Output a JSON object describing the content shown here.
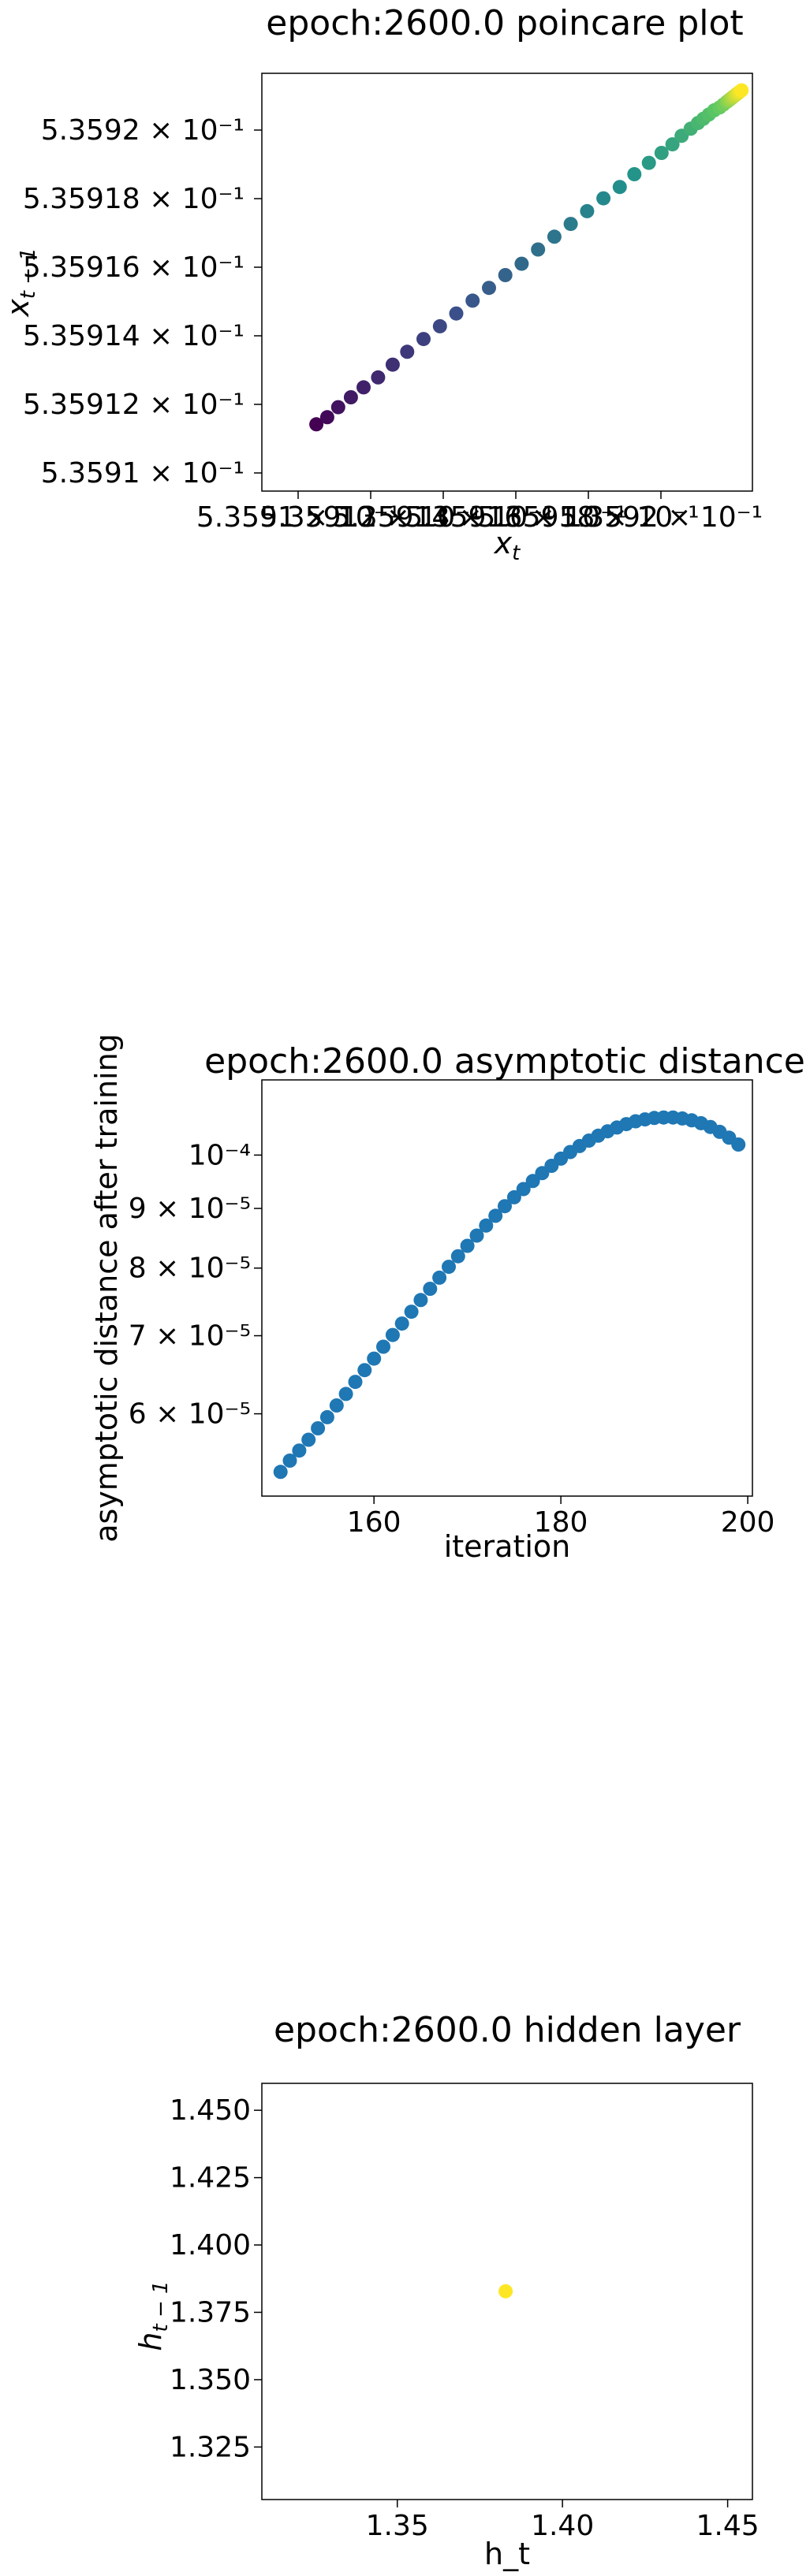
{
  "colors": {
    "viridis_start": "#440154",
    "viridis_mid": "#21918c",
    "viridis_end": "#fde725",
    "tab_blue": "#1f77b4"
  },
  "chart_data": [
    {
      "type": "scatter",
      "title": "epoch:2600.0 poincare plot",
      "xlabel": "x_t",
      "ylabel": "x_{t-1}",
      "xscale": "log",
      "yscale": "log",
      "grid": false,
      "colormap": "viridis",
      "x_tick_labels": [
        "5.3591 × 10⁻¹",
        "5.35912 × 10⁻¹",
        "5.35914 × 10⁻¹",
        "5.35916 × 10⁻¹",
        "5.35918 × 10⁻¹",
        "5.3592 × 10⁻¹"
      ],
      "y_tick_labels": [
        "5.3592 × 10⁻¹",
        "5.35918 × 10⁻¹",
        "5.35916 × 10⁻¹",
        "5.35914 × 10⁻¹",
        "5.35912 × 10⁻¹",
        "5.3591 × 10⁻¹"
      ],
      "xlim": [
        0.535908,
        0.5359215
      ],
      "ylim": [
        0.5359075,
        0.5359222
      ],
      "points": [
        [
          0.5359095,
          0.53590985
        ],
        [
          0.5359098,
          0.5359101
        ],
        [
          0.5359101,
          0.53591045
        ],
        [
          0.53591045,
          0.5359108
        ],
        [
          0.5359108,
          0.53591115
        ],
        [
          0.5359112,
          0.5359115
        ],
        [
          0.5359116,
          0.53591195
        ],
        [
          0.535912,
          0.5359124
        ],
        [
          0.53591245,
          0.53591285
        ],
        [
          0.5359129,
          0.5359133
        ],
        [
          0.53591335,
          0.53591375
        ],
        [
          0.5359138,
          0.5359142
        ],
        [
          0.53591425,
          0.53591465
        ],
        [
          0.5359147,
          0.5359151
        ],
        [
          0.53591515,
          0.5359155
        ],
        [
          0.5359156,
          0.535916
        ],
        [
          0.53591605,
          0.53591645
        ],
        [
          0.5359165,
          0.5359169
        ],
        [
          0.53591695,
          0.53591735
        ],
        [
          0.5359174,
          0.5359178
        ],
        [
          0.53591785,
          0.5359182
        ],
        [
          0.53591825,
          0.53591865
        ],
        [
          0.53591865,
          0.53591905
        ],
        [
          0.535919,
          0.5359194
        ],
        [
          0.5359193,
          0.5359197
        ],
        [
          0.53591955,
          0.53592
        ],
        [
          0.5359198,
          0.53592025
        ],
        [
          0.53592,
          0.53592045
        ],
        [
          0.53592015,
          0.5359206
        ],
        [
          0.5359203,
          0.53592075
        ],
        [
          0.53592045,
          0.5359209
        ],
        [
          0.5359206,
          0.535921
        ],
        [
          0.5359207,
          0.5359211
        ],
        [
          0.5359208,
          0.5359212
        ],
        [
          0.53592085,
          0.53592125
        ],
        [
          0.5359209,
          0.5359213
        ],
        [
          0.53592095,
          0.53592135
        ],
        [
          0.535921,
          0.5359214
        ],
        [
          0.53592105,
          0.53592145
        ],
        [
          0.5359211,
          0.5359215
        ],
        [
          0.53592115,
          0.53592155
        ],
        [
          0.5359212,
          0.5359216
        ]
      ]
    },
    {
      "type": "scatter",
      "title": "epoch:2600.0 asymptotic distance",
      "xlabel": "iteration",
      "ylabel": "asymptotic distance after training",
      "yscale": "log",
      "grid": false,
      "xlim": [
        148,
        200.5
      ],
      "ylim": [
        5.1e-05,
        0.000116
      ],
      "x_ticks": [
        160,
        180,
        200
      ],
      "y_ticks": [
        {
          "label": "6 × 10⁻⁵",
          "value": 6e-05
        },
        {
          "label": "7 × 10⁻⁵",
          "value": 7e-05
        },
        {
          "label": "8 × 10⁻⁵",
          "value": 8e-05
        },
        {
          "label": "9 × 10⁻⁵",
          "value": 9e-05
        },
        {
          "label": "10⁻⁴",
          "value": 0.0001
        }
      ],
      "x": [
        150,
        151,
        152,
        153,
        154,
        155,
        156,
        157,
        158,
        159,
        160,
        161,
        162,
        163,
        164,
        165,
        166,
        167,
        168,
        169,
        170,
        171,
        172,
        173,
        174,
        175,
        176,
        177,
        178,
        179,
        180,
        181,
        182,
        183,
        184,
        185,
        186,
        187,
        188,
        189,
        190,
        191,
        192,
        193,
        194,
        195,
        196,
        197,
        198,
        199
      ],
      "y": [
        5.35e-05,
        5.47e-05,
        5.58e-05,
        5.7e-05,
        5.83e-05,
        5.96e-05,
        6.1e-05,
        6.24e-05,
        6.39e-05,
        6.54e-05,
        6.69e-05,
        6.85e-05,
        7.01e-05,
        7.17e-05,
        7.34e-05,
        7.51e-05,
        7.68e-05,
        7.85e-05,
        8.02e-05,
        8.19e-05,
        8.36e-05,
        8.53e-05,
        8.7e-05,
        8.87e-05,
        9.04e-05,
        9.2e-05,
        9.35e-05,
        9.5e-05,
        9.65e-05,
        9.79e-05,
        9.93e-05,
        0.0001006,
        0.0001018,
        0.0001029,
        0.0001039,
        0.0001048,
        0.0001056,
        0.0001063,
        0.0001069,
        0.0001073,
        0.0001076,
        0.0001077,
        0.0001077,
        0.0001075,
        0.0001071,
        0.0001065,
        0.0001057,
        0.0001047,
        0.0001035,
        0.0001021
      ]
    },
    {
      "type": "scatter",
      "title": "epoch:2600.0 hidden layer",
      "xlabel": "h_t",
      "ylabel": "h_{t-1}",
      "grid": false,
      "xlim": [
        1.309,
        1.4575
      ],
      "ylim": [
        1.3055,
        1.46
      ],
      "x_ticks": [
        1.35,
        1.4,
        1.45
      ],
      "x_tick_labels": [
        "1.35",
        "1.40",
        "1.45"
      ],
      "y_ticks": [
        1.325,
        1.35,
        1.375,
        1.4,
        1.425,
        1.45
      ],
      "y_tick_labels": [
        "1.325",
        "1.350",
        "1.375",
        "1.400",
        "1.425",
        "1.450"
      ],
      "points": [
        [
          1.3828,
          1.3828
        ]
      ],
      "point_color": "#fde725"
    }
  ]
}
